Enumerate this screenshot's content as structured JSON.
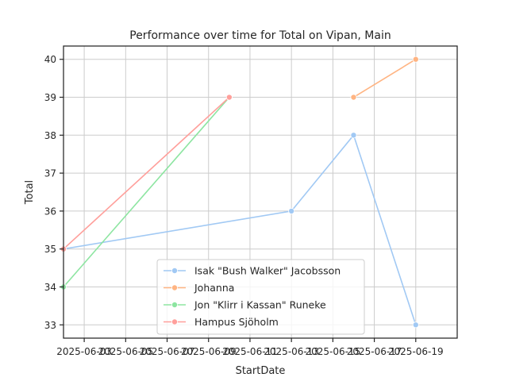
{
  "chart_data": {
    "type": "line",
    "title": "Performance over time for Total on Vipan, Main",
    "xlabel": "StartDate",
    "ylabel": "Total",
    "x_tick_labels": [
      "2025-06-03",
      "2025-06-05",
      "2025-06-07",
      "2025-06-09",
      "2025-06-11",
      "2025-06-13",
      "2025-06-15",
      "2025-06-17",
      "2025-06-19"
    ],
    "y_ticks": [
      33,
      34,
      35,
      36,
      37,
      38,
      39,
      40
    ],
    "xlim": [
      "2025-06-02",
      "2025-06-21"
    ],
    "ylim": [
      32.65,
      40.35
    ],
    "grid": true,
    "legend_position": "lower-center",
    "series": [
      {
        "name": "Isak \"Bush Walker\" Jacobsson",
        "color": "#a1c9f4",
        "x": [
          "2025-06-02",
          "2025-06-13",
          "2025-06-16",
          "2025-06-19"
        ],
        "y": [
          35,
          36,
          38,
          33
        ]
      },
      {
        "name": "Johanna",
        "color": "#ffb482",
        "x": [
          "2025-06-16",
          "2025-06-19"
        ],
        "y": [
          39,
          40
        ]
      },
      {
        "name": "Jon \"Klirr i Kassan\" Runeke",
        "color": "#8de5a1",
        "x": [
          "2025-06-02",
          "2025-06-10"
        ],
        "y": [
          34,
          39
        ]
      },
      {
        "name": "Hampus Sjöholm",
        "color": "#ff9f9b",
        "x": [
          "2025-06-02",
          "2025-06-10"
        ],
        "y": [
          35,
          39
        ]
      }
    ]
  }
}
